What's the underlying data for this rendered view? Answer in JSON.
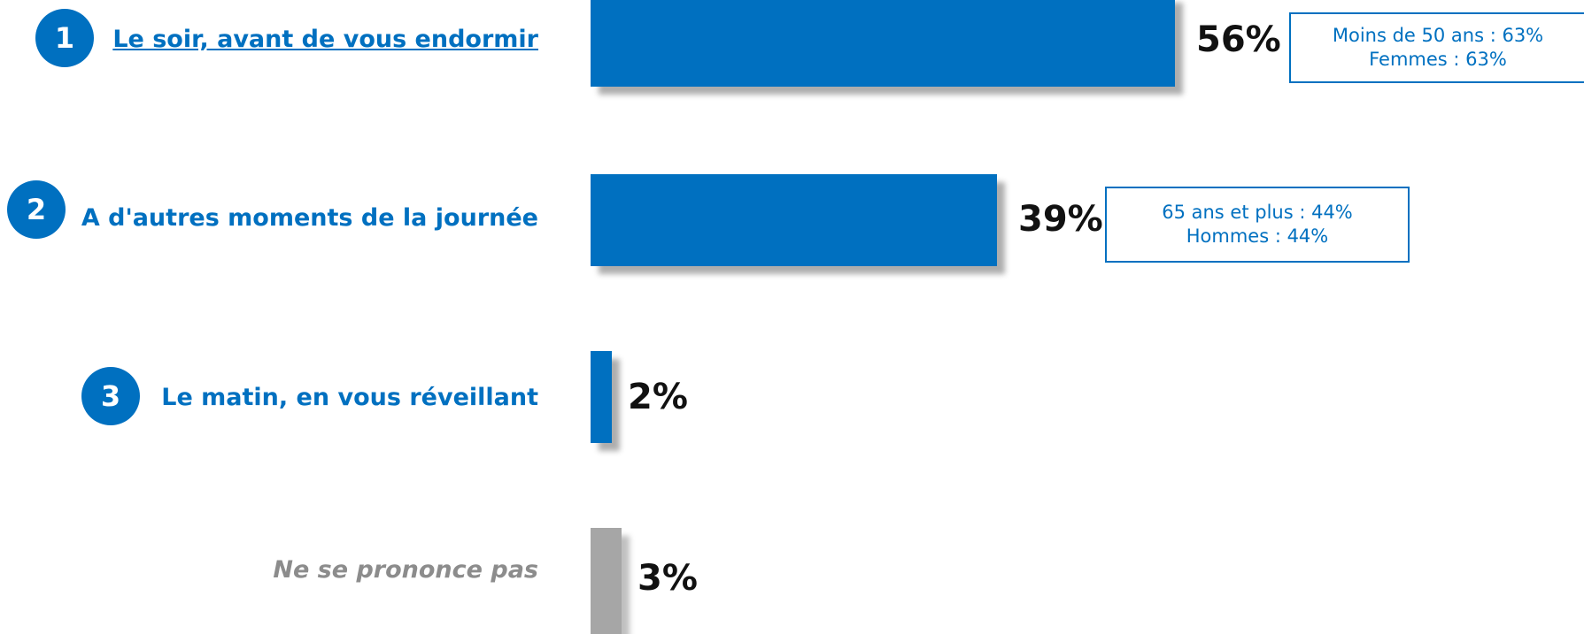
{
  "chart_data": {
    "type": "bar",
    "orientation": "horizontal",
    "unit": "%",
    "xlim": [
      0,
      100
    ],
    "grid": false,
    "legend": "none",
    "colors": {
      "main": "#0070c0",
      "undecided": "#a6a6a6"
    },
    "items": [
      {
        "rank": "1",
        "label": "Le soir, avant de vous endormir",
        "value": 56,
        "value_label": "56%",
        "note_lines": [
          "Moins de 50 ans : 63%",
          "Femmes : 63%"
        ]
      },
      {
        "rank": "2",
        "label": "A d'autres moments de la journée",
        "value": 39,
        "value_label": "39%",
        "note_lines": [
          "65 ans et plus : 44%",
          "Hommes : 44%"
        ]
      },
      {
        "rank": "3",
        "label": "Le matin, en vous réveillant",
        "value": 2,
        "value_label": "2%",
        "note_lines": []
      },
      {
        "rank": "",
        "label": "Ne se prononce pas",
        "value": 3,
        "value_label": "3%",
        "note_lines": []
      }
    ]
  }
}
